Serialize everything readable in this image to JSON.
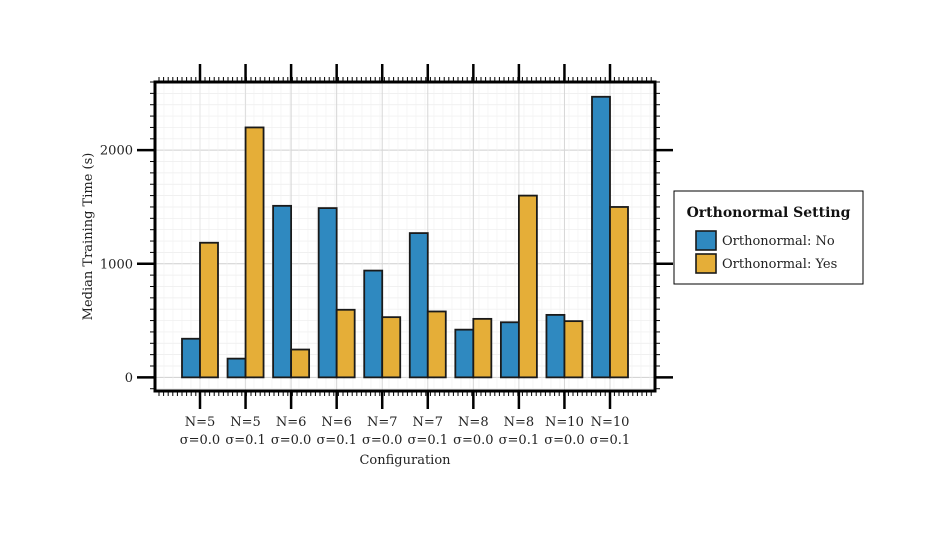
{
  "chart_data": {
    "type": "bar",
    "categories": [
      [
        "N=5",
        "σ=0.0"
      ],
      [
        "N=5",
        "σ=0.1"
      ],
      [
        "N=6",
        "σ=0.0"
      ],
      [
        "N=6",
        "σ=0.1"
      ],
      [
        "N=7",
        "σ=0.0"
      ],
      [
        "N=7",
        "σ=0.1"
      ],
      [
        "N=8",
        "σ=0.0"
      ],
      [
        "N=8",
        "σ=0.1"
      ],
      [
        "N=10",
        "σ=0.0"
      ],
      [
        "N=10",
        "σ=0.1"
      ]
    ],
    "series": [
      {
        "name": "Orthonormal: No",
        "color": "#2f89c0",
        "values": [
          340,
          165,
          1510,
          1490,
          940,
          1270,
          420,
          485,
          550,
          2470
        ]
      },
      {
        "name": "Orthonormal: Yes",
        "color": "#e5ae38",
        "values": [
          1185,
          2200,
          245,
          595,
          530,
          580,
          515,
          1600,
          495,
          1500
        ]
      }
    ],
    "title": "",
    "xlabel": "Configuration",
    "ylabel": "Median Training Time (s)",
    "ylim": [
      -120,
      2600
    ],
    "yticks": [
      0,
      1000,
      2000
    ],
    "grid": true,
    "legend": {
      "title": "Orthonormal Setting",
      "placement": "outside-right"
    }
  }
}
